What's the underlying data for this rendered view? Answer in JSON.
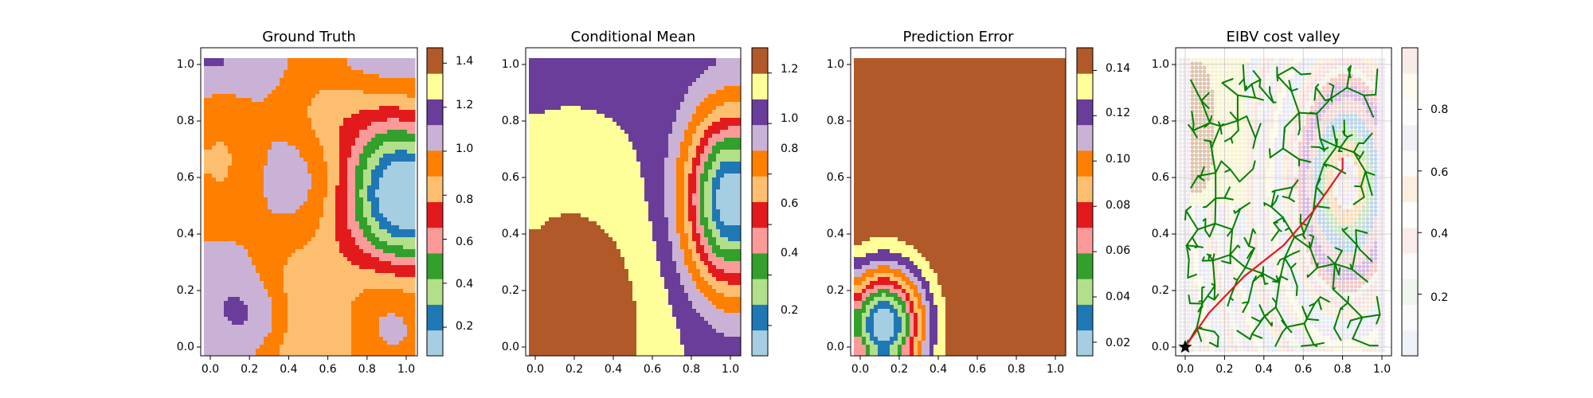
{
  "figure": {
    "panels": [
      {
        "title": "Ground Truth",
        "xticks": [
          "0.0",
          "0.2",
          "0.4",
          "0.6",
          "0.8",
          "1.0"
        ],
        "yticks": [
          "0.0",
          "0.2",
          "0.4",
          "0.6",
          "0.8",
          "1.0"
        ],
        "colorbar": {
          "ticks": [
            "0.2",
            "0.4",
            "0.6",
            "0.8",
            "1.0",
            "1.2",
            "1.4"
          ],
          "vmin": 0.07,
          "vmax": 1.47
        }
      },
      {
        "title": "Conditional Mean",
        "xticks": [
          "0.0",
          "0.2",
          "0.4",
          "0.6",
          "0.8",
          "1.0"
        ],
        "yticks": [
          "0.0",
          "0.2",
          "0.4",
          "0.6",
          "0.8",
          "1.0"
        ],
        "colorbar": {
          "ticks": [
            "0.2",
            "0.4",
            "0.6",
            "0.8",
            "1.0",
            "1.2"
          ],
          "vmin": 0.08,
          "vmax": 1.3
        }
      },
      {
        "title": "Prediction Error",
        "xticks": [
          "0.0",
          "0.2",
          "0.4",
          "0.6",
          "0.8",
          "1.0"
        ],
        "yticks": [
          "0.0",
          "0.2",
          "0.4",
          "0.6",
          "0.8",
          "1.0"
        ],
        "colorbar": {
          "ticks": [
            "0.02",
            "0.04",
            "0.06",
            "0.08",
            "0.10",
            "0.12",
            "0.14"
          ],
          "vmin": 0.014,
          "vmax": 0.15
        }
      },
      {
        "title": "EIBV cost valley",
        "xticks": [
          "0.0",
          "0.2",
          "0.4",
          "0.6",
          "0.8",
          "1.0"
        ],
        "yticks": [
          "0.0",
          "0.2",
          "0.4",
          "0.6",
          "0.8",
          "1.0"
        ],
        "colorbar": {
          "ticks": [
            "0.2",
            "0.4",
            "0.6",
            "0.8"
          ],
          "vmin": 0.0,
          "vmax": 1.0
        }
      }
    ],
    "palette_paired": [
      "#a6cee3",
      "#1f78b4",
      "#b2df8a",
      "#33a02c",
      "#fb9a99",
      "#e31a1c",
      "#fdbf6f",
      "#ff7f00",
      "#cab2d6",
      "#6a3d9a",
      "#ffff99",
      "#b15928"
    ],
    "colors": {
      "tree": "#008000",
      "path": "#e31a1c",
      "start_marker": "#000000"
    }
  },
  "chart_data": [
    {
      "type": "heatmap",
      "title": "Ground Truth",
      "xlim": [
        0,
        1
      ],
      "ylim": [
        0,
        1
      ],
      "value_range": [
        0.07,
        1.47
      ],
      "levels": 12,
      "colormap": "Paired",
      "description_values": {
        "low_pocket_center": [
          0.97,
          0.52
        ],
        "min": 0.07,
        "max": 1.47
      }
    },
    {
      "type": "heatmap",
      "title": "Conditional Mean",
      "xlim": [
        0,
        1
      ],
      "ylim": [
        0,
        1
      ],
      "value_range": [
        0.08,
        1.3
      ],
      "levels": 12,
      "colormap": "Paired"
    },
    {
      "type": "heatmap",
      "title": "Prediction Error",
      "xlim": [
        0,
        1
      ],
      "ylim": [
        0,
        1
      ],
      "value_range": [
        0.014,
        0.15
      ],
      "levels": 12,
      "colormap": "Paired",
      "low_error_center": [
        0.12,
        0.08
      ]
    },
    {
      "type": "scatter",
      "title": "EIBV cost valley",
      "xlim": [
        0,
        1
      ],
      "ylim": [
        0,
        1
      ],
      "value_range": [
        0,
        1
      ],
      "start": [
        0.0,
        0.0
      ],
      "goal": [
        0.8,
        0.63
      ],
      "planned_path": [
        [
          0.0,
          0.0
        ],
        [
          0.12,
          0.12
        ],
        [
          0.3,
          0.25
        ],
        [
          0.5,
          0.36
        ],
        [
          0.65,
          0.48
        ],
        [
          0.8,
          0.63
        ],
        [
          0.8,
          0.67
        ]
      ]
    }
  ]
}
